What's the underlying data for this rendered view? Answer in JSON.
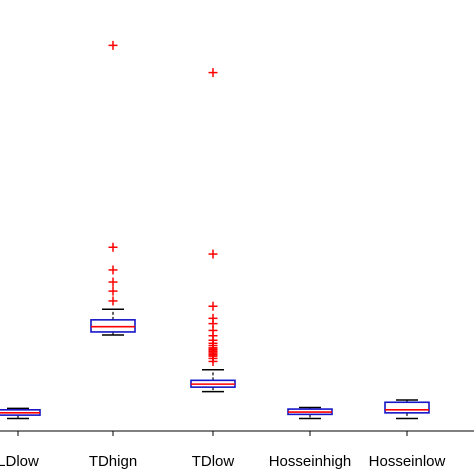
{
  "chart_data": {
    "type": "box",
    "categories": [
      "LDlow",
      "TDhign",
      "TDlow",
      "Hosseinhigh",
      "Hosseinlow"
    ],
    "boxes": [
      {
        "min": 6.5,
        "q1": 11,
        "median": 14,
        "q3": 18,
        "max": 20,
        "outliers": []
      },
      {
        "min": 117,
        "q1": 121,
        "median": 128,
        "q3": 137,
        "max": 151,
        "outliers": [
          162,
          175,
          187,
          203,
          233,
          500
        ]
      },
      {
        "min": 42,
        "q1": 48,
        "median": 52,
        "q3": 57,
        "max": 71,
        "outliers": [
          82,
          86,
          89,
          91,
          93,
          95,
          96,
          98,
          100,
          103,
          106,
          110,
          116,
          123,
          132,
          139,
          155,
          224,
          464
        ]
      },
      {
        "min": 6.5,
        "q1": 12,
        "median": 15,
        "q3": 19,
        "max": 21,
        "outliers": []
      },
      {
        "min": 6.5,
        "q1": 14,
        "median": 18,
        "q3": 28,
        "max": 31,
        "outliers": []
      }
    ],
    "ylim": [
      -10,
      560
    ],
    "box_color": "#1515c8",
    "median_color": "#ff0000",
    "outlier_color": "#ff0000",
    "whisker_color": "#000000",
    "axis_color": "#000000"
  }
}
